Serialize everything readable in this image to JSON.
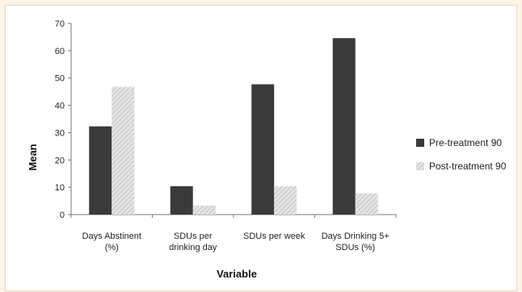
{
  "chart_data": {
    "type": "bar",
    "categories": [
      [
        "Days Abstinent",
        "(%)"
      ],
      [
        "SDUs per",
        "drinking day"
      ],
      [
        "SDUs per week"
      ],
      [
        "Days Drinking 5+",
        "SDUs (%)"
      ]
    ],
    "series": [
      {
        "name": "Pre-treatment 90",
        "values": [
          32.3,
          10.4,
          47.7,
          64.6
        ],
        "color": "#3a3a3a",
        "pattern": "solid"
      },
      {
        "name": "Post-treatment 90",
        "values": [
          46.8,
          3.3,
          10.4,
          7.8
        ],
        "color": "#cfcfcf",
        "pattern": "hatch"
      }
    ],
    "title": "",
    "xlabel": "Variable",
    "ylabel": "Mean",
    "ylim": [
      0,
      70
    ],
    "yticks": [
      0,
      10,
      20,
      30,
      40,
      50,
      60,
      70
    ],
    "grid": false,
    "legend": "right"
  }
}
